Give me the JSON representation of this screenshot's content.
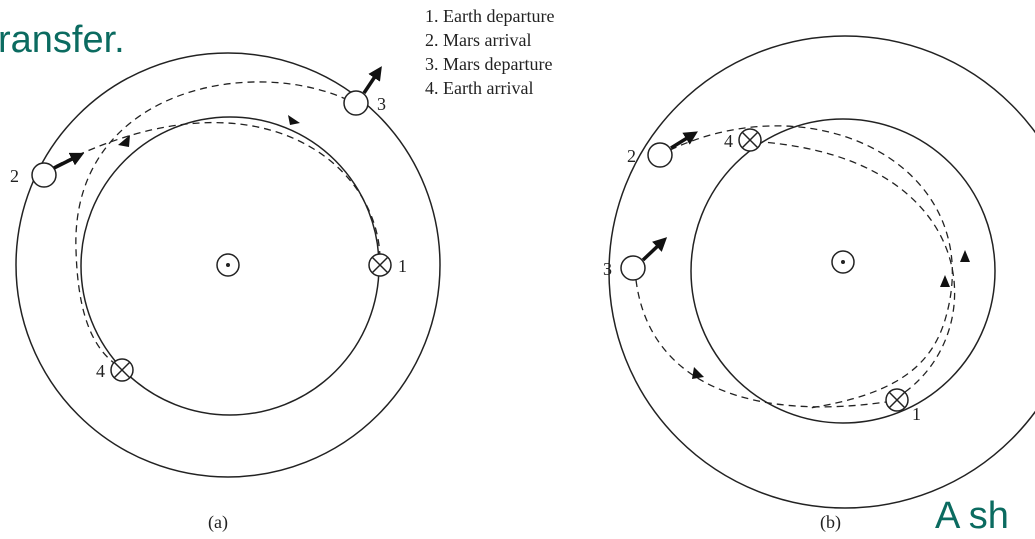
{
  "title": "ransfer.",
  "legend": [
    "1. Earth departure",
    "2. Mars arrival",
    "3. Mars departure",
    "4. Earth arrival"
  ],
  "diagram_a": {
    "labels": [
      "1",
      "2",
      "3",
      "4"
    ],
    "caption": "(a)"
  },
  "diagram_b": {
    "labels": [
      "1",
      "2",
      "3",
      "4"
    ],
    "caption": "(b)"
  },
  "footer": "A sh"
}
